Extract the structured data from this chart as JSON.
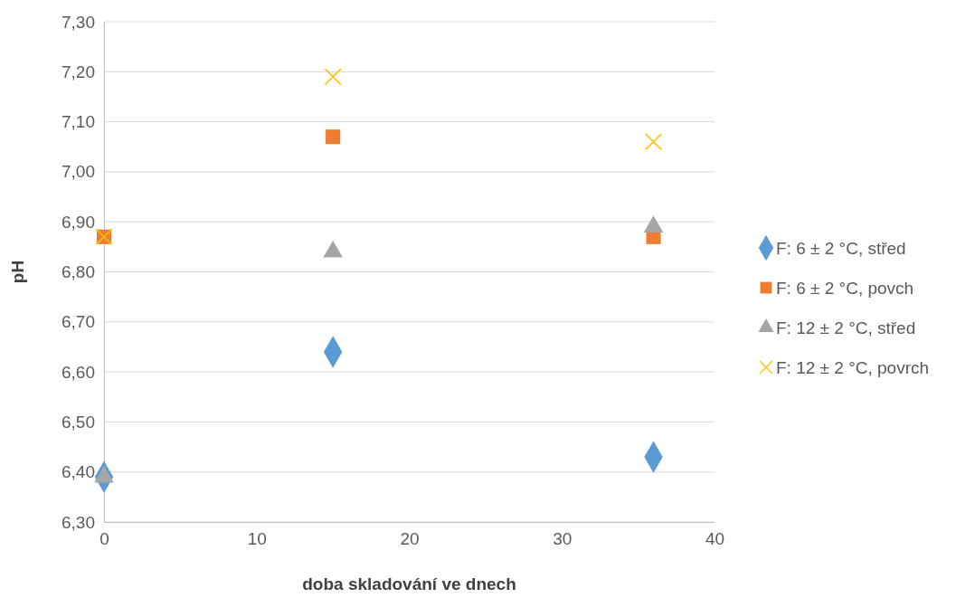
{
  "chart_data": {
    "type": "scatter",
    "xlabel": "doba skladování ve dnech",
    "ylabel": "pH",
    "xlim": [
      0,
      40
    ],
    "xticks": [
      0,
      10,
      20,
      30,
      40
    ],
    "ylim": [
      6.3,
      7.3
    ],
    "yticks": [
      {
        "value": 6.3,
        "label": "6,30"
      },
      {
        "value": 6.4,
        "label": "6,40"
      },
      {
        "value": 6.5,
        "label": "6,50"
      },
      {
        "value": 6.6,
        "label": "6,60"
      },
      {
        "value": 6.7,
        "label": "6,70"
      },
      {
        "value": 6.8,
        "label": "6,80"
      },
      {
        "value": 6.9,
        "label": "6,90"
      },
      {
        "value": 7.0,
        "label": "7,00"
      },
      {
        "value": 7.1,
        "label": "7,10"
      },
      {
        "value": 7.2,
        "label": "7,20"
      },
      {
        "value": 7.3,
        "label": "7,30"
      }
    ],
    "grid": "y",
    "legend": "right",
    "series": [
      {
        "name": "F: 6 ± 2 °C, střed",
        "color": "#5b9bd5",
        "marker": "diamond",
        "x": [
          0,
          15,
          36
        ],
        "values": [
          6.39,
          6.64,
          6.43
        ]
      },
      {
        "name": "F: 6 ± 2 °C, povch",
        "color": "#ed7d31",
        "marker": "square",
        "x": [
          0,
          15,
          36
        ],
        "values": [
          6.87,
          7.07,
          6.87
        ]
      },
      {
        "name": "F: 12 ± 2 °C, střed",
        "color": "#a5a5a5",
        "marker": "triangle",
        "x": [
          0,
          15,
          36
        ],
        "values": [
          6.39,
          6.84,
          6.89
        ]
      },
      {
        "name": "F: 12 ± 2 °C, povrch",
        "color": "#ffc000",
        "marker": "cross",
        "x": [
          0,
          15,
          36
        ],
        "values": [
          6.87,
          7.19,
          7.06
        ]
      }
    ]
  }
}
